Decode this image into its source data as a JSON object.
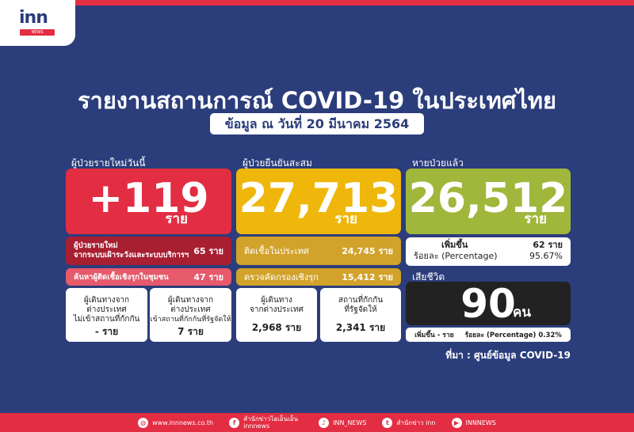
{
  "logo": {
    "text": "inn",
    "sub": "NEWS"
  },
  "title": "รายงานสถานการณ์ COVID-19 ในประเทศไทย",
  "subtitle": "ข้อมูล ณ วันที่ 20 มีนาคม 2564",
  "new_cases": {
    "label": "ผู้ป่วยรายใหม่วันนี้",
    "value": "+119",
    "unit": "ราย",
    "row1": {
      "label": "ผู้ป่วยรายใหม่",
      "label2": "จากระบบเฝ้าระวังและระบบบริการฯ",
      "value": "65 ราย"
    },
    "row2": {
      "label": "ค้นหาผู้ติดเชื้อเชิงรุกในชุมชน",
      "value": "47 ราย"
    },
    "card1": {
      "l1": "ผู้เดินทางจาก",
      "l2": "ต่างประเทศ",
      "l3": "ไม่เข้าสถานที่กักกัน",
      "value": "- ราย"
    },
    "card2": {
      "l1": "ผู้เดินทางจาก",
      "l2": "ต่างประเทศ",
      "l3": "เข้าสถานที่กักกันที่รัฐจัดให้",
      "value": "7 ราย"
    }
  },
  "cumulative": {
    "label": "ผู้ป่วยยืนยันสะสม",
    "value": "27,713",
    "unit": "ราย",
    "row1": {
      "label": "ติดเชื้อในประเทศ",
      "value": "24,745 ราย"
    },
    "row2": {
      "label": "ตรวจคัดกรองเชิงรุก",
      "value": "15,412 ราย"
    },
    "card1": {
      "l1": "ผู้เดินทาง",
      "l2": "จากต่างประเทศ",
      "value": "2,968 ราย"
    },
    "card2": {
      "l1": "สถานที่กักกัน",
      "l2": "ที่รัฐจัดให้",
      "value": "2,341 ราย"
    }
  },
  "recovered": {
    "label": "หายป่วยแล้ว",
    "value": "26,512",
    "unit": "ราย",
    "inc_label": "เพิ่มขึ้น",
    "inc_value": "62 ราย",
    "pct_label": "ร้อยละ (Percentage)",
    "pct_value": "95.67%"
  },
  "deaths": {
    "label": "เสียชีวิต",
    "value": "90",
    "unit": "คน",
    "inc": "เพิ่มขึ้น - ราย",
    "pct": "ร้อยละ (Percentage) 0.32%"
  },
  "source": "ที่มา : ศูนย์ข้อมูล COVID-19",
  "footer": [
    {
      "icon": "globe",
      "text": "www.innnews.co.th"
    },
    {
      "icon": "facebook",
      "text": "สำนักข่าวไอเอ็นเอ็น innnews"
    },
    {
      "icon": "tiktok",
      "text": "INN_NEWS"
    },
    {
      "icon": "twitter",
      "text": "สำนักข่าว inn"
    },
    {
      "icon": "youtube",
      "text": "INNNEWS"
    }
  ],
  "colors": {
    "bg": "#2b3d7b",
    "red": "#e22d43",
    "yellow": "#efb70b",
    "green": "#a0b73c",
    "black": "#222222"
  }
}
